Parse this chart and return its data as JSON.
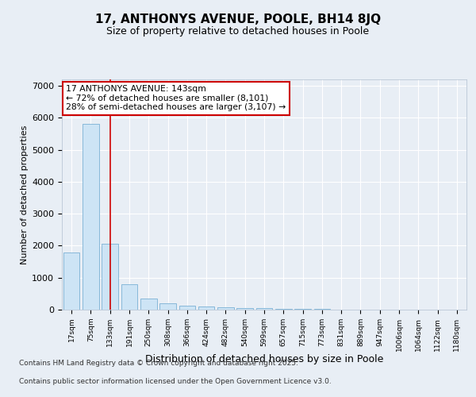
{
  "title_line1": "17, ANTHONYS AVENUE, POOLE, BH14 8JQ",
  "title_line2": "Size of property relative to detached houses in Poole",
  "xlabel": "Distribution of detached houses by size in Poole",
  "ylabel": "Number of detached properties",
  "categories": [
    "17sqm",
    "75sqm",
    "133sqm",
    "191sqm",
    "250sqm",
    "308sqm",
    "366sqm",
    "424sqm",
    "482sqm",
    "540sqm",
    "599sqm",
    "657sqm",
    "715sqm",
    "773sqm",
    "831sqm",
    "889sqm",
    "947sqm",
    "1006sqm",
    "1064sqm",
    "1122sqm",
    "1180sqm"
  ],
  "values": [
    1780,
    5800,
    2070,
    800,
    360,
    210,
    120,
    90,
    80,
    60,
    40,
    35,
    20,
    15,
    10,
    8,
    5,
    3,
    2,
    1,
    1
  ],
  "bar_color": "#cde4f5",
  "bar_edge_color": "#7ab0d4",
  "marker_index": 2,
  "marker_color": "#cc0000",
  "annotation_text": "17 ANTHONYS AVENUE: 143sqm\n← 72% of detached houses are smaller (8,101)\n28% of semi-detached houses are larger (3,107) →",
  "annotation_box_color": "#ffffff",
  "annotation_box_edge": "#cc0000",
  "ylim": [
    0,
    7200
  ],
  "yticks": [
    0,
    1000,
    2000,
    3000,
    4000,
    5000,
    6000,
    7000
  ],
  "bg_color": "#e8eef5",
  "plot_bg_color": "#e8eef5",
  "grid_color": "#ffffff",
  "footer_line1": "Contains HM Land Registry data © Crown copyright and database right 2025.",
  "footer_line2": "Contains public sector information licensed under the Open Government Licence v3.0."
}
